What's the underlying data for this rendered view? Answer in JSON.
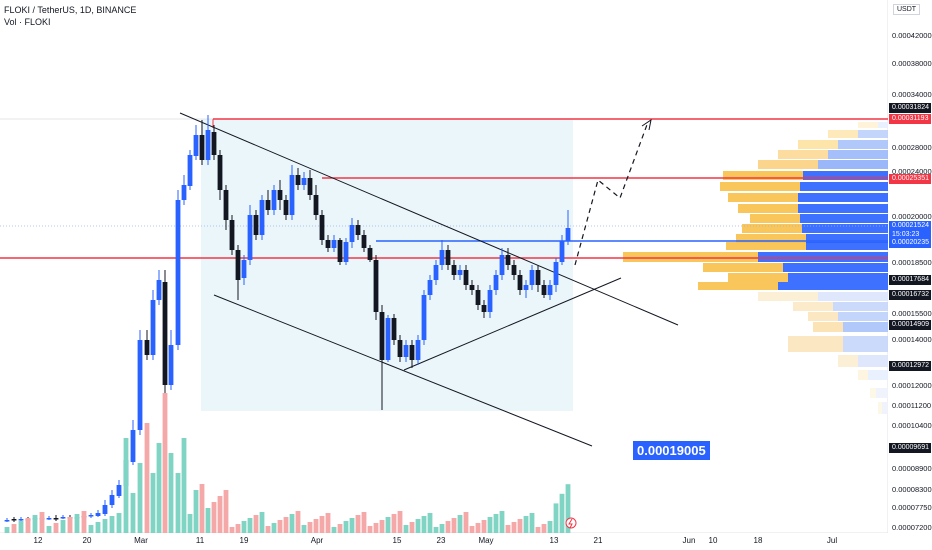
{
  "header": {
    "symbol": "FLOKI / TetherUS, 1D, BINANCE",
    "indicator": "Vol · FLOKI"
  },
  "currency": "USDT",
  "callout": "0.00019005",
  "price_axis": {
    "ticks": [
      "0.00042000",
      "0.00038000",
      "0.00034000",
      "0.00028000",
      "0.00024000",
      "0.00020000",
      "0.00018500",
      "0.00015500",
      "0.00014000",
      "0.00012000",
      "0.00011200",
      "0.00010400",
      "0.00008900",
      "0.00008300",
      "0.00007750",
      "0.00007200"
    ],
    "badges": [
      {
        "label": "0.00031824",
        "color": "#131722"
      },
      {
        "label": "0.00031193",
        "color": "#f23645"
      },
      {
        "label": "0.00025351",
        "color": "#f23645"
      },
      {
        "label": "0.00021524",
        "color": "#2962ff"
      },
      {
        "label": "15:03:23",
        "color": "#2962ff"
      },
      {
        "label": "0.00020235",
        "color": "#2962ff"
      },
      {
        "label": "0.00017684",
        "color": "#131722"
      },
      {
        "label": "0.00016732",
        "color": "#131722"
      },
      {
        "label": "0.00014909",
        "color": "#131722"
      },
      {
        "label": "0.00012972",
        "color": "#131722"
      },
      {
        "label": "0.00009691",
        "color": "#131722"
      }
    ]
  },
  "time_axis": [
    "12",
    "20",
    "Mar",
    "11",
    "19",
    "Apr",
    "15",
    "23",
    "May",
    "13",
    "21",
    "Jun",
    "10",
    "18",
    "Jul"
  ],
  "colors": {
    "up": "#2962ff",
    "down": "#131722",
    "level": "#f23645",
    "volume_up": "#7fd4c4",
    "volume_down": "#f4a8a8"
  },
  "chart_data": {
    "type": "candlestick",
    "title": "",
    "ylabel": "USDT",
    "ylim": [
      7.2e-05,
      0.00042
    ],
    "horizontal_levels": [
      0.00031193,
      0.00025351,
      0.00020235,
      0.00017684
    ],
    "callout_value": 0.00019005
  }
}
